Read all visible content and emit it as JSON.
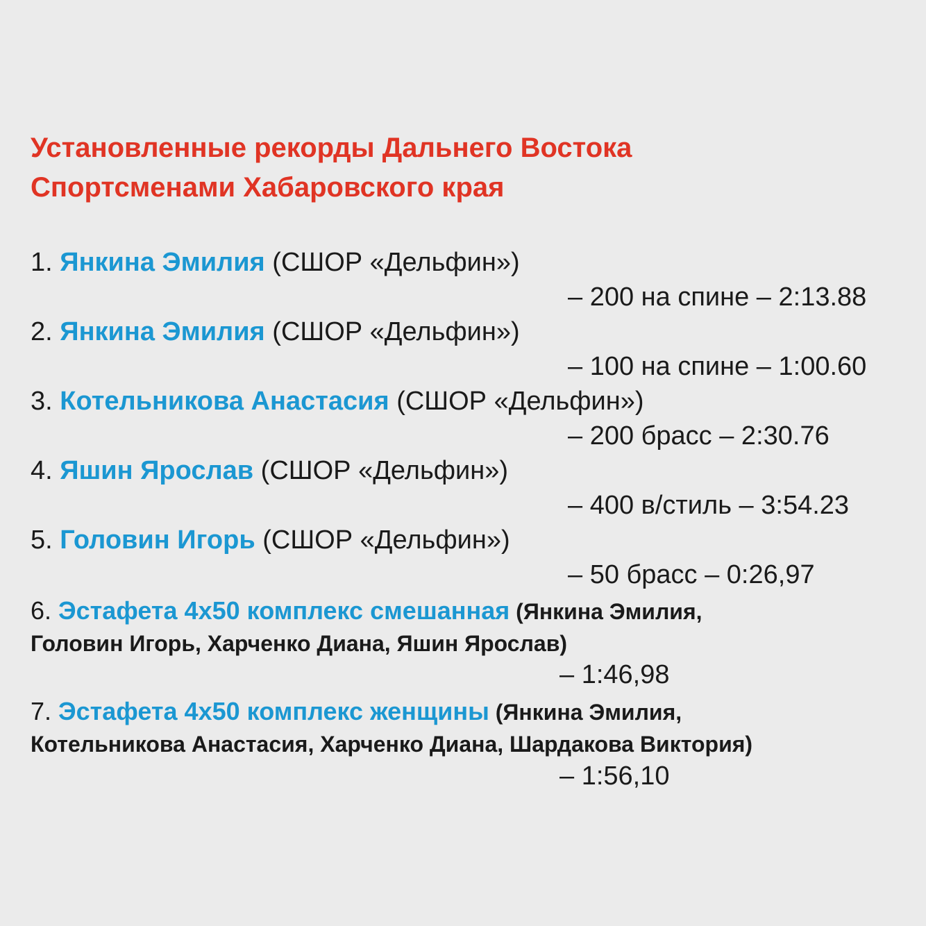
{
  "title": {
    "line1": "Установленные рекорды Дальнего Востока",
    "line2": "Спортсменами Хабаровского края"
  },
  "records": [
    {
      "num": "1.",
      "name": "Янкина Эмилия",
      "club": " (СШОР «Дельфин»)",
      "result": "– 200 на спине – 2:13.88"
    },
    {
      "num": "2.",
      "name": "Янкина Эмилия",
      "club": " (СШОР «Дельфин»)",
      "result": "– 100 на спине – 1:00.60"
    },
    {
      "num": "3.",
      "name": "Котельникова Анастасия",
      "club": " (СШОР «Дельфин»)",
      "result": "– 200 брасс – 2:30.76"
    },
    {
      "num": "4.",
      "name": "Яшин Ярослав",
      "club": " (СШОР «Дельфин»)",
      "result": "– 400 в/стиль – 3:54.23"
    },
    {
      "num": "5.",
      "name": "Головин Игорь",
      "club": " (СШОР «Дельфин»)",
      "result": "– 50 брасс – 0:26,97"
    }
  ],
  "relays": [
    {
      "num": "6.",
      "name": "Эстафета 4х50 комплекс смешанная",
      "members_line1": " (Янкина Эмилия,",
      "members_line2": "Головин Игорь, Харченко Диана, Яшин Ярослав)",
      "result": "– 1:46,98"
    },
    {
      "num": "7.",
      "name": "Эстафета 4х50 комплекс женщины",
      "members_line1": " (Янкина Эмилия,",
      "members_line2": "Котельникова Анастасия, Харченко Диана, Шардакова Виктория)",
      "result": "– 1:56,10"
    }
  ],
  "colors": {
    "title": "#e03424",
    "name": "#1b97d2",
    "text": "#1a1a1a",
    "background": "#ebebeb"
  }
}
